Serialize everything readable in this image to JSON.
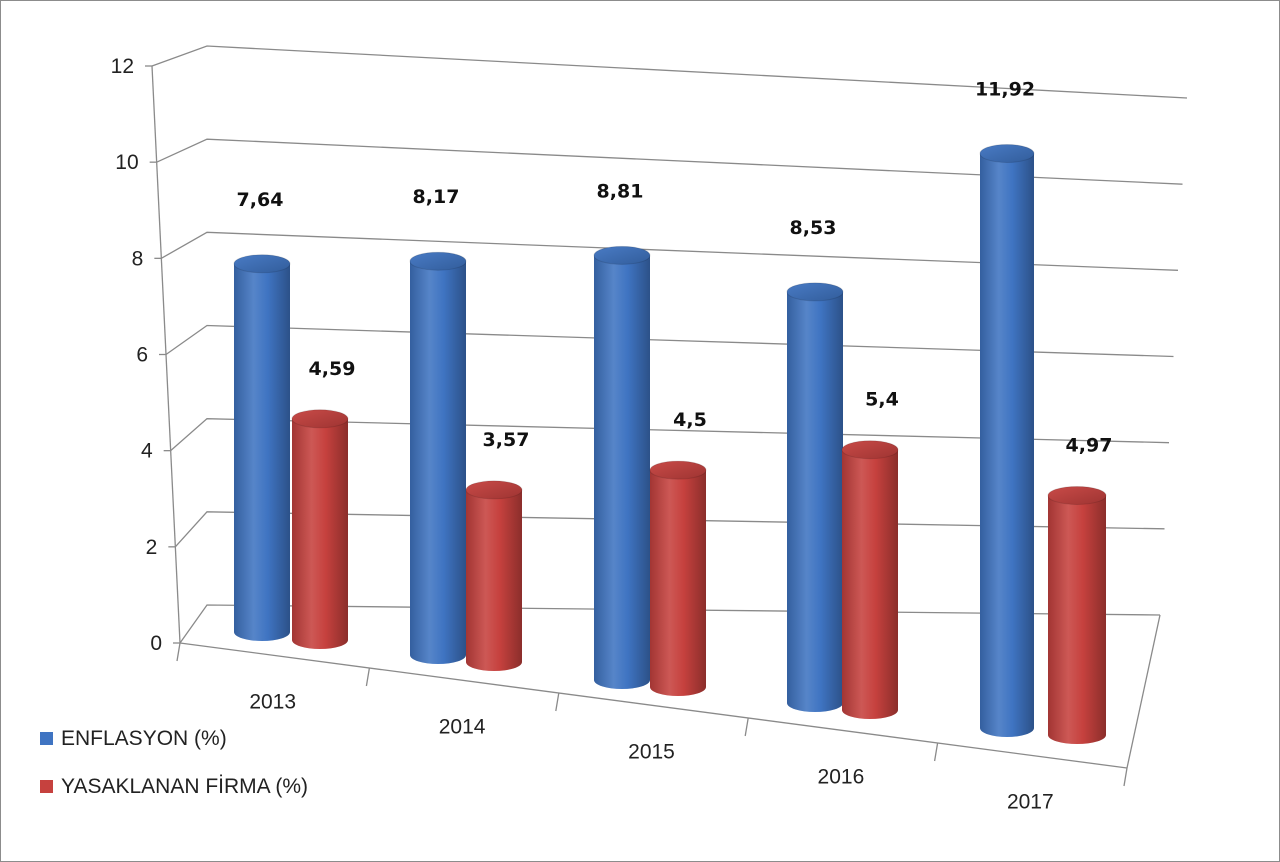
{
  "chart_data": {
    "type": "bar",
    "style": "3d-cylinder",
    "title": "",
    "xlabel": "",
    "ylabel": "",
    "categories": [
      "2013",
      "2014",
      "2015",
      "2016",
      "2017"
    ],
    "series": [
      {
        "name": "ENFLASYON (%)",
        "values": [
          7.64,
          8.17,
          8.81,
          8.53,
          11.92
        ],
        "labels": [
          "7,64",
          "8,17",
          "8,81",
          "8,53",
          "11,92"
        ],
        "color": "#3f74c2"
      },
      {
        "name": "YASAKLANAN FİRMA (%)",
        "values": [
          4.59,
          3.57,
          4.5,
          5.4,
          4.97
        ],
        "labels": [
          "4,59",
          "3,57",
          "4,5",
          "5,4",
          "4,97"
        ],
        "color": "#c6413e"
      }
    ],
    "ylim": [
      0,
      12
    ],
    "yticks": [
      0,
      2,
      4,
      6,
      8,
      10,
      12
    ],
    "ytick_labels": [
      "0",
      "2",
      "4",
      "6",
      "8",
      "10",
      "12"
    ],
    "grid": true,
    "legend_position": "bottom-left"
  }
}
